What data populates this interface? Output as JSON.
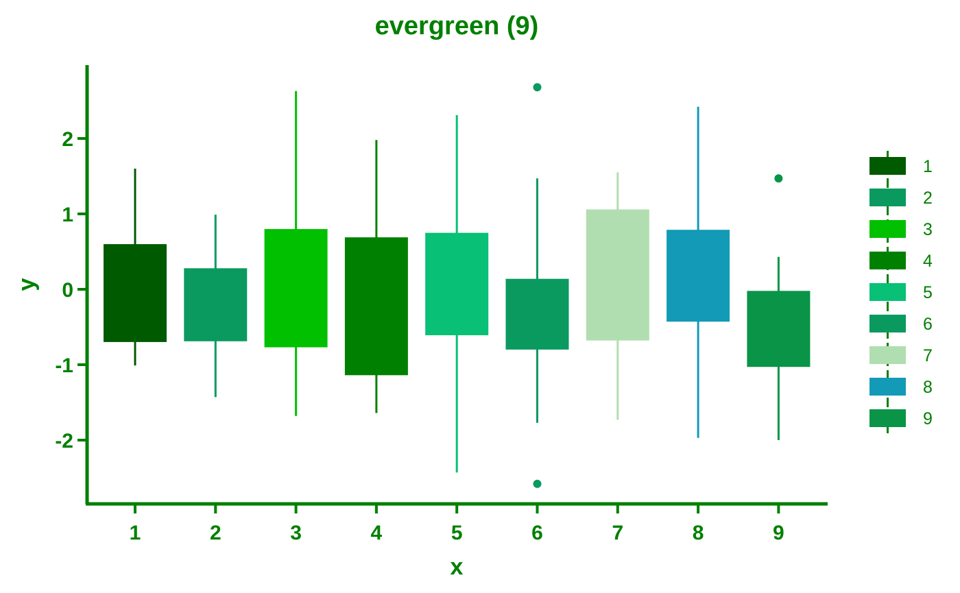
{
  "chart_data": {
    "type": "box",
    "title": "evergreen (9)",
    "xlabel": "x",
    "ylabel": "y",
    "categories": [
      "1",
      "2",
      "3",
      "4",
      "5",
      "6",
      "7",
      "8",
      "9"
    ],
    "yticks": [
      -2,
      -1,
      0,
      1,
      2
    ],
    "ylim": [
      -2.82,
      3.0
    ],
    "grid": false,
    "legend": {
      "position": "right",
      "entries": [
        "1",
        "2",
        "3",
        "4",
        "5",
        "6",
        "7",
        "8",
        "9"
      ]
    },
    "boxes": [
      {
        "category": "1",
        "color": "#005a00",
        "whisker_low": -1.01,
        "q1": -0.69,
        "q3": 0.59,
        "whisker_high": 1.6,
        "outliers": []
      },
      {
        "category": "2",
        "color": "#0a9a60",
        "whisker_low": -1.43,
        "q1": -0.68,
        "q3": 0.27,
        "whisker_high": 0.99,
        "outliers": []
      },
      {
        "category": "3",
        "color": "#00c000",
        "whisker_low": -1.68,
        "q1": -0.76,
        "q3": 0.79,
        "whisker_high": 2.63,
        "outliers": []
      },
      {
        "category": "4",
        "color": "#008000",
        "whisker_low": -1.64,
        "q1": -1.13,
        "q3": 0.68,
        "whisker_high": 1.98,
        "outliers": []
      },
      {
        "category": "5",
        "color": "#08c076",
        "whisker_low": -2.43,
        "q1": -0.6,
        "q3": 0.74,
        "whisker_high": 2.31,
        "outliers": []
      },
      {
        "category": "6",
        "color": "#0a9a60",
        "whisker_low": -1.77,
        "q1": -0.79,
        "q3": 0.13,
        "whisker_high": 1.47,
        "outliers": [
          2.68,
          -2.58
        ]
      },
      {
        "category": "7",
        "color": "#b0deb0",
        "whisker_low": -1.73,
        "q1": -0.67,
        "q3": 1.05,
        "whisker_high": 1.55,
        "outliers": []
      },
      {
        "category": "8",
        "color": "#129ab6",
        "whisker_low": -1.97,
        "q1": -0.42,
        "q3": 0.78,
        "whisker_high": 2.42,
        "outliers": []
      },
      {
        "category": "9",
        "color": "#0a9448",
        "whisker_low": -2.0,
        "q1": -1.02,
        "q3": -0.03,
        "whisker_high": 0.43,
        "outliers": [
          1.47
        ]
      }
    ],
    "colors": {
      "axis": "#008000",
      "text": "#008000"
    }
  }
}
